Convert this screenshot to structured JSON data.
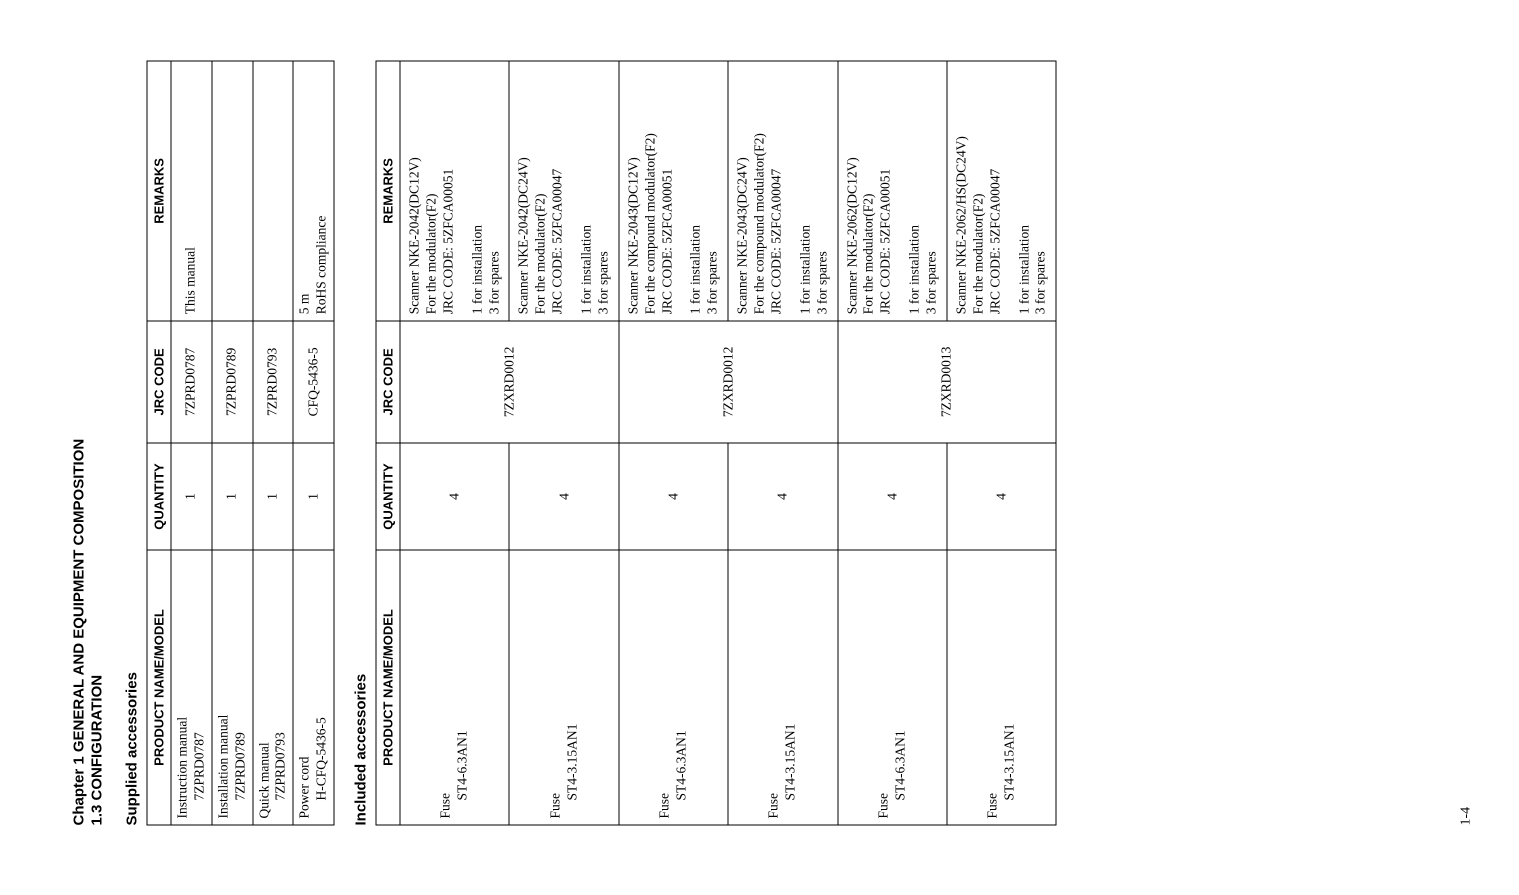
{
  "header": {
    "chapter_line": "Chapter 1   GENERAL AND EQUIPMENT COMPOSITION",
    "section_line": "1.3   CONFIGURATION"
  },
  "supplied": {
    "title": "Supplied accessories",
    "columns": {
      "name": "PRODUCT NAME/MODEL",
      "qty": "QUANTITY",
      "code": "JRC CODE",
      "rem": "REMARKS"
    },
    "rows": [
      {
        "name_l1": "Instruction manual",
        "name_l2": "7ZPRD0787",
        "qty": "1",
        "code": "7ZPRD0787",
        "rem": "This manual"
      },
      {
        "name_l1": "Installation manual",
        "name_l2": "7ZPRD0789",
        "qty": "1",
        "code": "7ZPRD0789",
        "rem": ""
      },
      {
        "name_l1": "Quick manual",
        "name_l2": "7ZPRD0793",
        "qty": "1",
        "code": "7ZPRD0793",
        "rem": ""
      },
      {
        "name_l1": "Power cord",
        "name_l2": "H-CFQ-5436-5",
        "qty": "1",
        "code": "CFQ-5436-5",
        "rem_l1": "5 m",
        "rem_l2": "RoHS compliance"
      }
    ]
  },
  "included": {
    "title": "Included accessories",
    "columns": {
      "name": "PRODUCT NAME/MODEL",
      "qty": "QUANTITY",
      "code": "JRC CODE",
      "rem": "REMARKS"
    },
    "groups": [
      {
        "code": "7ZXRD0012",
        "items": [
          {
            "name_l1": "Fuse",
            "name_l2": "ST4-6.3AN1",
            "qty": "4",
            "rem_top_l1": "Scanner NKE-2042(DC12V)",
            "rem_top_l2": "For the modulator(F2)",
            "rem_top_l3": "JRC CODE: 5ZFCA00051",
            "rem_bot_l1": "1 for installation",
            "rem_bot_l2": "3 for spares"
          },
          {
            "name_l1": "Fuse",
            "name_l2": "ST4-3.15AN1",
            "qty": "4",
            "rem_top_l1": "Scanner NKE-2042(DC24V)",
            "rem_top_l2": "For the modulator(F2)",
            "rem_top_l3": "JRC CODE: 5ZFCA00047",
            "rem_bot_l1": "1 for installation",
            "rem_bot_l2": "3 for spares"
          }
        ]
      },
      {
        "code": "7ZXRD0012",
        "items": [
          {
            "name_l1": "Fuse",
            "name_l2": "ST4-6.3AN1",
            "qty": "4",
            "rem_top_l1": "Scanner NKE-2043(DC12V)",
            "rem_top_l2": "For the compound modulator(F2)",
            "rem_top_l3": "JRC CODE: 5ZFCA00051",
            "rem_bot_l1": "1 for installation",
            "rem_bot_l2": "3 for spares"
          },
          {
            "name_l1": "Fuse",
            "name_l2": "ST4-3.15AN1",
            "qty": "4",
            "rem_top_l1": "Scanner NKE-2043(DC24V)",
            "rem_top_l2": "For the compound modulator(F2)",
            "rem_top_l3": "JRC CODE: 5ZFCA00047",
            "rem_bot_l1": "1 for installation",
            "rem_bot_l2": "3 for spares"
          }
        ]
      },
      {
        "code": "7ZXRD0013",
        "items": [
          {
            "name_l1": "Fuse",
            "name_l2": "ST4-6.3AN1",
            "qty": "4",
            "rem_top_l1": "Scanner NKE-2062(DC12V)",
            "rem_top_l2": "For the modulator(F2)",
            "rem_top_l3": "JRC CODE: 5ZFCA00051",
            "rem_bot_l1": "1 for installation",
            "rem_bot_l2": "3 for spares"
          },
          {
            "name_l1": "Fuse",
            "name_l2": "ST4-3.15AN1",
            "qty": "4",
            "rem_top_l1": "Scanner NKE-2062/HS(DC24V)",
            "rem_top_l2": "For the modulator(F2)",
            "rem_top_l3": "JRC CODE: 5ZFCA00047",
            "rem_bot_l1": "1 for installation",
            "rem_bot_l2": "3 for spares"
          }
        ]
      }
    ]
  },
  "page_number": "1-4"
}
